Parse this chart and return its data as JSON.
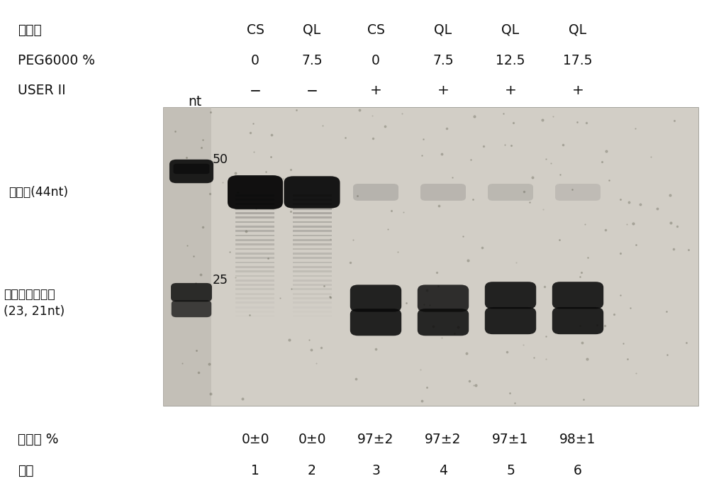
{
  "background_color": "#ffffff",
  "fig_width": 10.0,
  "fig_height": 7.02,
  "gel_bg": "#d2cec6",
  "marker_stripe_color": "#b0aca4",
  "col_labels": [
    "CS",
    "QL",
    "CS",
    "QL",
    "QL",
    "QL"
  ],
  "peg_labels": [
    "0",
    "7.5",
    "0",
    "7.5",
    "12.5",
    "17.5"
  ],
  "user_labels": [
    "−",
    "−",
    "+",
    "+",
    "+",
    "+"
  ],
  "row_label_buffer": "缓冲液",
  "row_label_peg": "PEG6000 %",
  "row_label_user": "USER II",
  "marker_label": "nt",
  "marker_50": "50",
  "marker_25": "25",
  "left_label_44": "衬接子(44nt)",
  "left_label_23": "裂解后的衬接子\n(23, 21nt)",
  "footer_label_cleavage": "裂解率 %",
  "footer_label_lane": "列数",
  "cleavage_vals": [
    "0±0",
    "0±0",
    "97±2",
    "97±2",
    "97±1",
    "98±1"
  ],
  "lane_nums": [
    "1",
    "2",
    "3",
    "4",
    "5",
    "6"
  ]
}
